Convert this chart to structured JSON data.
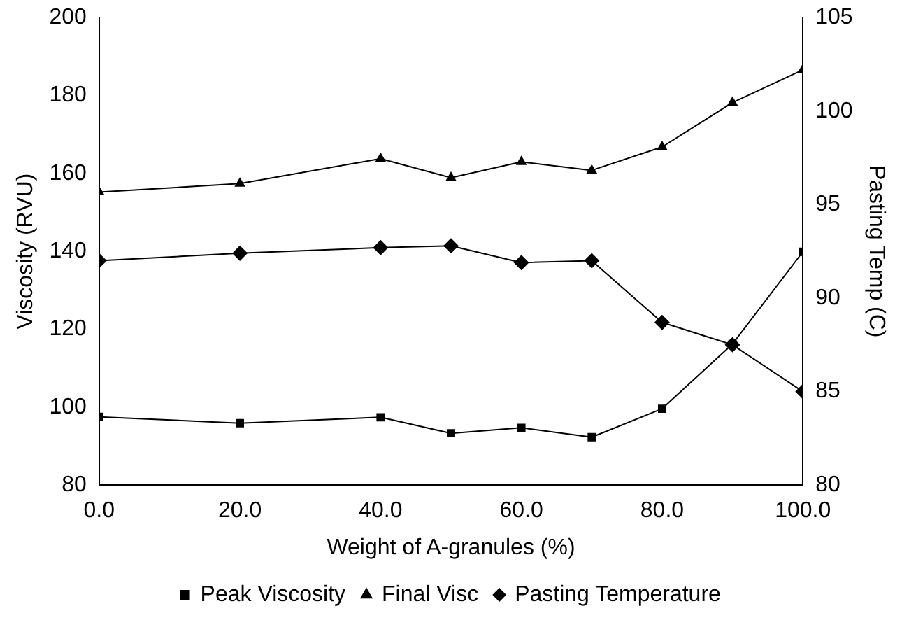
{
  "chart_data": {
    "type": "line",
    "xlabel": "Weight of A-granules (%)",
    "ylabel": "Viscosity (RVU)",
    "y2label": "Pasting Temp (C)",
    "x": [
      0,
      20,
      40,
      50,
      60,
      70,
      80,
      90,
      100
    ],
    "xlim": [
      0,
      100
    ],
    "xticks": [
      {
        "value": 0,
        "label": "0.0"
      },
      {
        "value": 20,
        "label": "20.0"
      },
      {
        "value": 40,
        "label": "40.0"
      },
      {
        "value": 60,
        "label": "60.0"
      },
      {
        "value": 80,
        "label": "80.0"
      },
      {
        "value": 100,
        "label": "100.0"
      }
    ],
    "ylim": [
      80,
      200
    ],
    "yticks": [
      80,
      100,
      120,
      140,
      160,
      180,
      200
    ],
    "y2lim": [
      80,
      105
    ],
    "y2ticks": [
      80,
      85,
      90,
      95,
      100,
      105
    ],
    "grid": false,
    "legend": "bottom",
    "line_style": "solid",
    "series": [
      {
        "name": "Peak Viscosity",
        "color": "#000000",
        "marker": "square",
        "values": [
          97.5,
          95.9,
          97.4,
          93.3,
          94.7,
          92.3,
          99.6,
          116.2,
          139.9
        ]
      },
      {
        "name": "Final Visc",
        "color": "#000000",
        "marker": "triangle",
        "values": [
          155.2,
          157.4,
          163.8,
          158.9,
          163.0,
          160.8,
          166.8,
          178.2,
          186.6
        ]
      },
      {
        "name": "Pasting Temperature",
        "color": "#000000",
        "marker": "diamond",
        "axis": "y2",
        "values": [
          92.0,
          92.4,
          92.7,
          92.8,
          91.9,
          92.0,
          88.7,
          87.5,
          85.0
        ]
      }
    ]
  }
}
